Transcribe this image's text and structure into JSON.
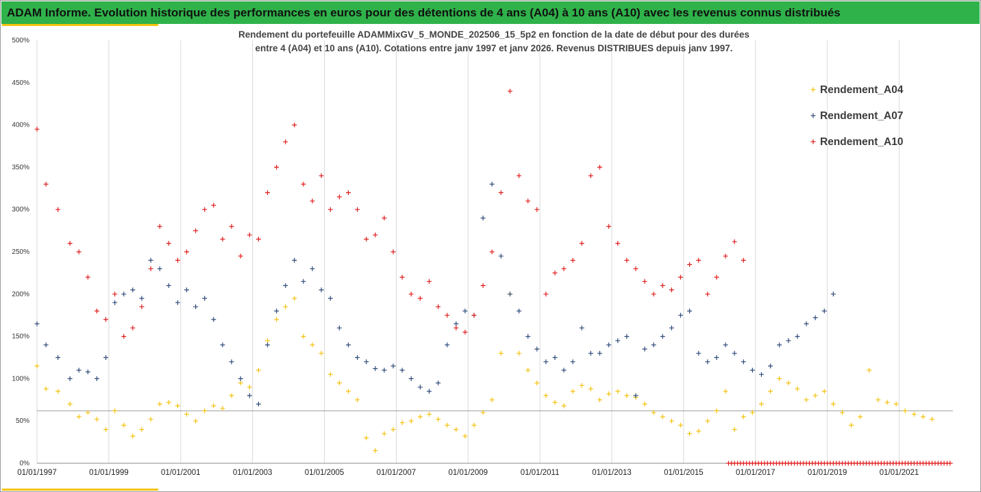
{
  "header": {
    "title": "ADAM Informe. Evolution historique des performances en euros pour des détentions de 4 ans (A04) à 10 ans (A10) avec les revenus connus distribués",
    "title_bg": "#2fb24a",
    "accent": "#f4c20d"
  },
  "chart_data": {
    "type": "scatter",
    "subtitle_lines": [
      "Rendement du portefeuille ADAMMixGV_5_MONDE_202506_15_5p2 en fonction de la date de début pour des durées",
      "entre 4 (A04) et 10 ans (A10). Cotations entre janv 1997 et janv 2026. Revenus DISTRIBUES depuis janv 1997."
    ],
    "xlim": [
      "1997-01-01",
      "2022-06-30"
    ],
    "x_ticks": [
      "01/01/1997",
      "01/01/1999",
      "01/01/2001",
      "01/01/2003",
      "01/01/2005",
      "01/01/2007",
      "01/01/2009",
      "01/01/2011",
      "01/01/2013",
      "01/01/2015",
      "01/01/2017",
      "01/01/2019",
      "01/01/2021"
    ],
    "ylim": [
      0,
      500
    ],
    "y_ticks": [
      "0%",
      "50%",
      "100%",
      "150%",
      "200%",
      "250%",
      "300%",
      "350%",
      "400%",
      "450%",
      "500%"
    ],
    "y_unit": "%",
    "grid": "vertical gridlines at x ticks",
    "reference_line": 62,
    "legend_position": "right",
    "marker": "+",
    "series": [
      {
        "name": "Rendement_A04",
        "color": "#f4c20d",
        "points": [
          [
            "1997-01",
            115
          ],
          [
            "1997-04",
            88
          ],
          [
            "1997-08",
            85
          ],
          [
            "1997-12",
            70
          ],
          [
            "1998-03",
            55
          ],
          [
            "1998-06",
            60
          ],
          [
            "1998-09",
            52
          ],
          [
            "1998-12",
            40
          ],
          [
            "1999-03",
            62
          ],
          [
            "1999-06",
            45
          ],
          [
            "1999-09",
            32
          ],
          [
            "1999-12",
            40
          ],
          [
            "2000-03",
            52
          ],
          [
            "2000-06",
            70
          ],
          [
            "2000-09",
            72
          ],
          [
            "2000-12",
            68
          ],
          [
            "2001-03",
            58
          ],
          [
            "2001-06",
            50
          ],
          [
            "2001-09",
            62
          ],
          [
            "2001-12",
            68
          ],
          [
            "2002-03",
            65
          ],
          [
            "2002-06",
            80
          ],
          [
            "2002-09",
            95
          ],
          [
            "2002-12",
            90
          ],
          [
            "2003-03",
            110
          ],
          [
            "2003-06",
            145
          ],
          [
            "2003-09",
            170
          ],
          [
            "2003-12",
            185
          ],
          [
            "2004-03",
            195
          ],
          [
            "2004-06",
            150
          ],
          [
            "2004-09",
            140
          ],
          [
            "2004-12",
            130
          ],
          [
            "2005-03",
            105
          ],
          [
            "2005-06",
            95
          ],
          [
            "2005-09",
            85
          ],
          [
            "2005-12",
            75
          ],
          [
            "2006-03",
            30
          ],
          [
            "2006-06",
            15
          ],
          [
            "2006-09",
            35
          ],
          [
            "2006-12",
            40
          ],
          [
            "2007-03",
            48
          ],
          [
            "2007-06",
            50
          ],
          [
            "2007-09",
            55
          ],
          [
            "2007-12",
            58
          ],
          [
            "2008-03",
            52
          ],
          [
            "2008-06",
            45
          ],
          [
            "2008-09",
            40
          ],
          [
            "2008-12",
            32
          ],
          [
            "2009-03",
            45
          ],
          [
            "2009-06",
            60
          ],
          [
            "2009-09",
            75
          ],
          [
            "2009-12",
            130
          ],
          [
            "2010-03",
            200
          ],
          [
            "2010-06",
            130
          ],
          [
            "2010-09",
            110
          ],
          [
            "2010-12",
            95
          ],
          [
            "2011-03",
            80
          ],
          [
            "2011-06",
            72
          ],
          [
            "2011-09",
            68
          ],
          [
            "2011-12",
            85
          ],
          [
            "2012-03",
            92
          ],
          [
            "2012-06",
            88
          ],
          [
            "2012-09",
            75
          ],
          [
            "2012-12",
            82
          ],
          [
            "2013-03",
            85
          ],
          [
            "2013-06",
            80
          ],
          [
            "2013-09",
            78
          ],
          [
            "2013-12",
            70
          ],
          [
            "2014-03",
            60
          ],
          [
            "2014-06",
            55
          ],
          [
            "2014-09",
            50
          ],
          [
            "2014-12",
            45
          ],
          [
            "2015-03",
            35
          ],
          [
            "2015-06",
            38
          ],
          [
            "2015-09",
            50
          ],
          [
            "2015-12",
            62
          ],
          [
            "2016-03",
            85
          ],
          [
            "2016-06",
            40
          ],
          [
            "2016-09",
            55
          ],
          [
            "2016-12",
            60
          ],
          [
            "2017-03",
            70
          ],
          [
            "2017-06",
            85
          ],
          [
            "2017-09",
            100
          ],
          [
            "2017-12",
            95
          ],
          [
            "2018-03",
            88
          ],
          [
            "2018-06",
            75
          ],
          [
            "2018-09",
            80
          ],
          [
            "2018-12",
            85
          ],
          [
            "2019-03",
            70
          ],
          [
            "2019-06",
            60
          ],
          [
            "2019-09",
            45
          ],
          [
            "2019-12",
            55
          ],
          [
            "2020-03",
            110
          ],
          [
            "2020-06",
            75
          ],
          [
            "2020-09",
            72
          ],
          [
            "2020-12",
            70
          ],
          [
            "2021-03",
            62
          ],
          [
            "2021-06",
            58
          ],
          [
            "2021-09",
            55
          ],
          [
            "2021-12",
            52
          ]
        ]
      },
      {
        "name": "Rendement_A07",
        "color": "#2e4a7a",
        "points": [
          [
            "1997-01",
            165
          ],
          [
            "1997-04",
            140
          ],
          [
            "1997-08",
            125
          ],
          [
            "1997-12",
            100
          ],
          [
            "1998-03",
            110
          ],
          [
            "1998-06",
            108
          ],
          [
            "1998-09",
            100
          ],
          [
            "1998-12",
            125
          ],
          [
            "1999-03",
            190
          ],
          [
            "1999-06",
            200
          ],
          [
            "1999-09",
            205
          ],
          [
            "1999-12",
            195
          ],
          [
            "2000-03",
            240
          ],
          [
            "2000-06",
            230
          ],
          [
            "2000-09",
            210
          ],
          [
            "2000-12",
            190
          ],
          [
            "2001-03",
            205
          ],
          [
            "2001-06",
            185
          ],
          [
            "2001-09",
            195
          ],
          [
            "2001-12",
            170
          ],
          [
            "2002-03",
            140
          ],
          [
            "2002-06",
            120
          ],
          [
            "2002-09",
            100
          ],
          [
            "2002-12",
            80
          ],
          [
            "2003-03",
            70
          ],
          [
            "2003-06",
            140
          ],
          [
            "2003-09",
            180
          ],
          [
            "2003-12",
            210
          ],
          [
            "2004-03",
            240
          ],
          [
            "2004-06",
            215
          ],
          [
            "2004-09",
            230
          ],
          [
            "2004-12",
            205
          ],
          [
            "2005-03",
            195
          ],
          [
            "2005-06",
            160
          ],
          [
            "2005-09",
            140
          ],
          [
            "2005-12",
            125
          ],
          [
            "2006-03",
            120
          ],
          [
            "2006-06",
            112
          ],
          [
            "2006-09",
            110
          ],
          [
            "2006-12",
            115
          ],
          [
            "2007-03",
            110
          ],
          [
            "2007-06",
            100
          ],
          [
            "2007-09",
            90
          ],
          [
            "2007-12",
            85
          ],
          [
            "2008-03",
            95
          ],
          [
            "2008-06",
            140
          ],
          [
            "2008-09",
            165
          ],
          [
            "2008-12",
            180
          ],
          [
            "2009-03",
            175
          ],
          [
            "2009-06",
            290
          ],
          [
            "2009-09",
            330
          ],
          [
            "2009-12",
            245
          ],
          [
            "2010-03",
            200
          ],
          [
            "2010-06",
            180
          ],
          [
            "2010-09",
            150
          ],
          [
            "2010-12",
            135
          ],
          [
            "2011-03",
            120
          ],
          [
            "2011-06",
            125
          ],
          [
            "2011-09",
            110
          ],
          [
            "2011-12",
            120
          ],
          [
            "2012-03",
            160
          ],
          [
            "2012-06",
            130
          ],
          [
            "2012-09",
            130
          ],
          [
            "2012-12",
            140
          ],
          [
            "2013-03",
            145
          ],
          [
            "2013-06",
            150
          ],
          [
            "2013-09",
            80
          ],
          [
            "2013-12",
            135
          ],
          [
            "2014-03",
            140
          ],
          [
            "2014-06",
            150
          ],
          [
            "2014-09",
            160
          ],
          [
            "2014-12",
            175
          ],
          [
            "2015-03",
            180
          ],
          [
            "2015-06",
            130
          ],
          [
            "2015-09",
            120
          ],
          [
            "2015-12",
            125
          ],
          [
            "2016-03",
            140
          ],
          [
            "2016-06",
            130
          ],
          [
            "2016-09",
            120
          ],
          [
            "2016-12",
            110
          ],
          [
            "2017-03",
            105
          ],
          [
            "2017-06",
            115
          ],
          [
            "2017-09",
            140
          ],
          [
            "2017-12",
            145
          ],
          [
            "2018-03",
            150
          ],
          [
            "2018-06",
            165
          ],
          [
            "2018-09",
            172
          ],
          [
            "2018-12",
            180
          ],
          [
            "2019-03",
            200
          ]
        ]
      },
      {
        "name": "Rendement_A10",
        "color": "#e01b1b",
        "points": [
          [
            "1997-01",
            395
          ],
          [
            "1997-04",
            330
          ],
          [
            "1997-08",
            300
          ],
          [
            "1997-12",
            260
          ],
          [
            "1998-03",
            250
          ],
          [
            "1998-06",
            220
          ],
          [
            "1998-09",
            180
          ],
          [
            "1998-12",
            170
          ],
          [
            "1999-03",
            200
          ],
          [
            "1999-06",
            150
          ],
          [
            "1999-09",
            160
          ],
          [
            "1999-12",
            185
          ],
          [
            "2000-03",
            230
          ],
          [
            "2000-06",
            280
          ],
          [
            "2000-09",
            260
          ],
          [
            "2000-12",
            240
          ],
          [
            "2001-03",
            250
          ],
          [
            "2001-06",
            275
          ],
          [
            "2001-09",
            300
          ],
          [
            "2001-12",
            305
          ],
          [
            "2002-03",
            265
          ],
          [
            "2002-06",
            280
          ],
          [
            "2002-09",
            245
          ],
          [
            "2002-12",
            270
          ],
          [
            "2003-03",
            265
          ],
          [
            "2003-06",
            320
          ],
          [
            "2003-09",
            350
          ],
          [
            "2003-12",
            380
          ],
          [
            "2004-03",
            400
          ],
          [
            "2004-06",
            330
          ],
          [
            "2004-09",
            310
          ],
          [
            "2004-12",
            340
          ],
          [
            "2005-03",
            300
          ],
          [
            "2005-06",
            315
          ],
          [
            "2005-09",
            320
          ],
          [
            "2005-12",
            300
          ],
          [
            "2006-03",
            265
          ],
          [
            "2006-06",
            270
          ],
          [
            "2006-09",
            290
          ],
          [
            "2006-12",
            250
          ],
          [
            "2007-03",
            220
          ],
          [
            "2007-06",
            200
          ],
          [
            "2007-09",
            195
          ],
          [
            "2007-12",
            215
          ],
          [
            "2008-03",
            185
          ],
          [
            "2008-06",
            175
          ],
          [
            "2008-09",
            160
          ],
          [
            "2008-12",
            155
          ],
          [
            "2009-03",
            175
          ],
          [
            "2009-06",
            210
          ],
          [
            "2009-09",
            250
          ],
          [
            "2009-12",
            320
          ],
          [
            "2010-03",
            440
          ],
          [
            "2010-06",
            340
          ],
          [
            "2010-09",
            310
          ],
          [
            "2010-12",
            300
          ],
          [
            "2011-03",
            200
          ],
          [
            "2011-06",
            225
          ],
          [
            "2011-09",
            230
          ],
          [
            "2011-12",
            240
          ],
          [
            "2012-03",
            260
          ],
          [
            "2012-06",
            340
          ],
          [
            "2012-09",
            350
          ],
          [
            "2012-12",
            280
          ],
          [
            "2013-03",
            260
          ],
          [
            "2013-06",
            240
          ],
          [
            "2013-09",
            230
          ],
          [
            "2013-12",
            215
          ],
          [
            "2014-03",
            200
          ],
          [
            "2014-06",
            210
          ],
          [
            "2014-09",
            205
          ],
          [
            "2014-12",
            220
          ],
          [
            "2015-03",
            235
          ],
          [
            "2015-06",
            240
          ],
          [
            "2015-09",
            200
          ],
          [
            "2015-12",
            220
          ],
          [
            "2016-03",
            245
          ],
          [
            "2016-06",
            262
          ],
          [
            "2016-09",
            240
          ]
        ]
      }
    ],
    "zero_band": {
      "series": "Rendement_A10",
      "from": "2016-04",
      "to": "2022-06",
      "value": 0
    }
  }
}
